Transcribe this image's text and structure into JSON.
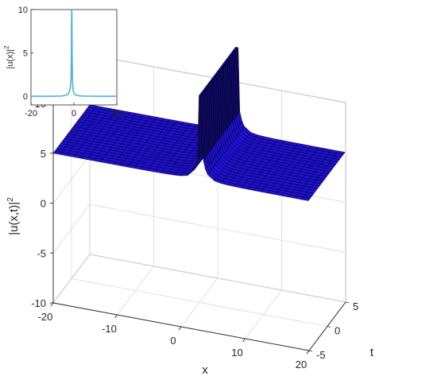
{
  "chart_data": [
    {
      "type": "surface",
      "title": "",
      "xlabel": "x",
      "ylabel": "t",
      "zlabel_base": "|u(x,t)|",
      "zlabel_exp": "2",
      "xlim": [
        -20,
        20
      ],
      "ylim": [
        -5,
        5
      ],
      "zlim": [
        -10,
        10
      ],
      "xticks": [
        "-20",
        "-10",
        "0",
        "10",
        "20"
      ],
      "yticks": [
        "-5",
        "0",
        "5"
      ],
      "zticks": [
        "-10",
        "-5",
        "0",
        "5",
        "10"
      ],
      "grid": true,
      "surface_color": "#1f10d8",
      "edge_color": "#000000",
      "peak_x": 3,
      "baseline_value": 5,
      "peak_value": 10
    },
    {
      "type": "line",
      "xlabel": "x",
      "ylabel_base": "|u(x)|",
      "ylabel_exp": "2",
      "xlim": [
        -20,
        20
      ],
      "ylim": [
        -1,
        10
      ],
      "xticks": [
        "-20",
        "0",
        "20"
      ],
      "yticks": [
        "0",
        "5",
        "10"
      ],
      "series": [
        {
          "color": "#4fb0e0",
          "x": [
            -20,
            -10,
            -6,
            -4,
            -3,
            -2.5,
            -2,
            -1.7,
            -1.5,
            -1.35,
            -1.25,
            -1.2,
            -1.15,
            -1.1,
            -1.05,
            -1,
            -0.95,
            -0.9,
            -0.85,
            -0.8,
            -0.75,
            -0.65,
            -0.5,
            -0.3,
            0,
            1,
            3,
            6,
            10,
            20
          ],
          "y": [
            0,
            0,
            0.03,
            0.1,
            0.2,
            0.35,
            0.6,
            0.95,
            1.4,
            2.2,
            3.3,
            4.3,
            5.8,
            8.2,
            10,
            10,
            10,
            8.2,
            5.8,
            4.3,
            3.3,
            1.9,
            1.1,
            0.6,
            0.35,
            0.12,
            0.04,
            0.01,
            0,
            0
          ]
        }
      ]
    }
  ]
}
